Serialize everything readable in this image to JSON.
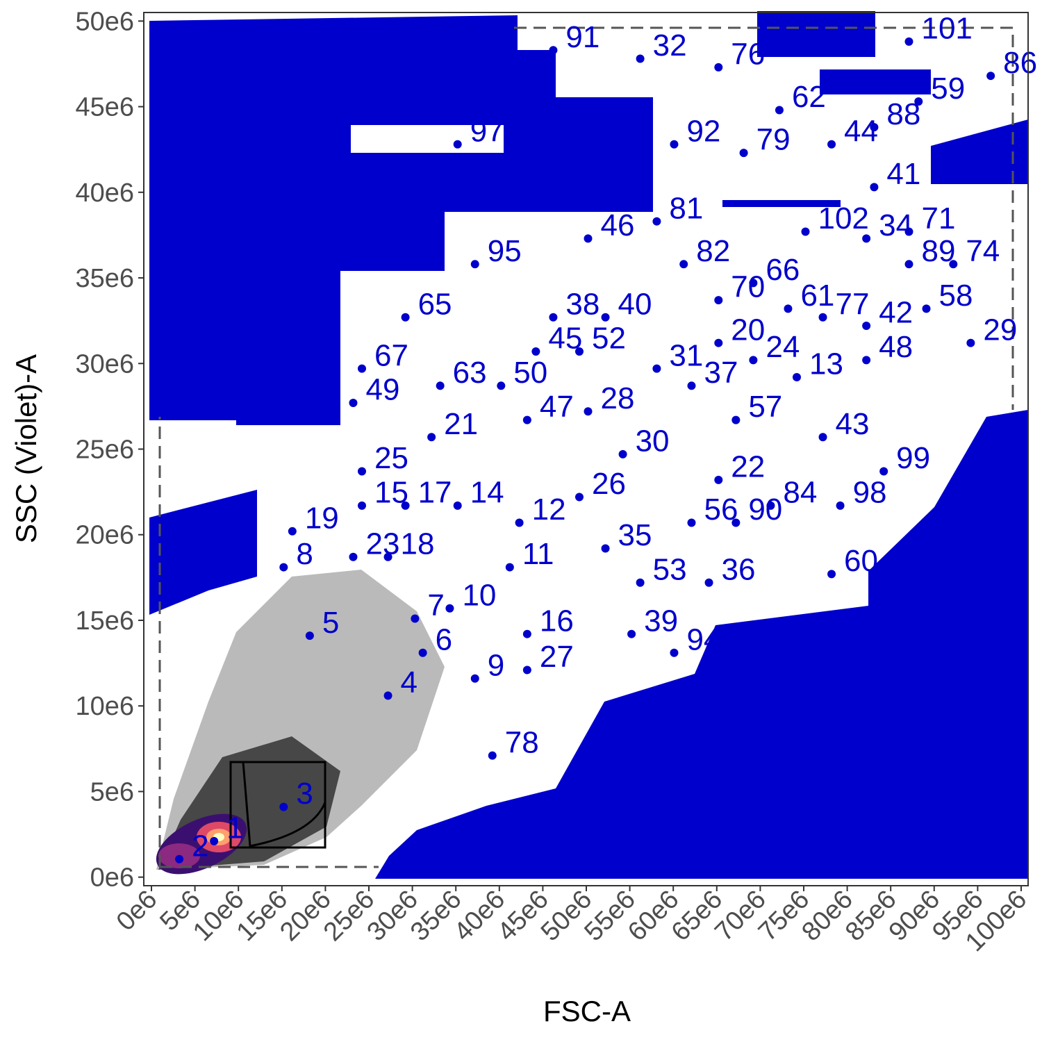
{
  "chart_data": {
    "type": "scatter",
    "x_label": "FSC-A",
    "y_label": "SSC (Violet)-A",
    "xlim": [
      -880000.0,
      100800000.0
    ],
    "ylim": [
      -500000.0,
      50500000.0
    ],
    "xticks": [
      {
        "value": 0,
        "label": "0e6"
      },
      {
        "value": 5000000.0,
        "label": "5e6"
      },
      {
        "value": 10000000.0,
        "label": "10e6"
      },
      {
        "value": 15000000.0,
        "label": "15e6"
      },
      {
        "value": 20000000.0,
        "label": "20e6"
      },
      {
        "value": 25000000.0,
        "label": "25e6"
      },
      {
        "value": 30000000.0,
        "label": "30e6"
      },
      {
        "value": 35000000.0,
        "label": "35e6"
      },
      {
        "value": 40000000.0,
        "label": "40e6"
      },
      {
        "value": 45000000.0,
        "label": "45e6"
      },
      {
        "value": 50000000.0,
        "label": "50e6"
      },
      {
        "value": 55000000.0,
        "label": "55e6"
      },
      {
        "value": 60000000.0,
        "label": "60e6"
      },
      {
        "value": 65000000.0,
        "label": "65e6"
      },
      {
        "value": 70000000.0,
        "label": "70e6"
      },
      {
        "value": 75000000.0,
        "label": "75e6"
      },
      {
        "value": 80000000.0,
        "label": "80e6"
      },
      {
        "value": 85000000.0,
        "label": "85e6"
      },
      {
        "value": 90000000.0,
        "label": "90e6"
      },
      {
        "value": 95000000.0,
        "label": "95e6"
      },
      {
        "value": 100000000.0,
        "label": "100e6"
      }
    ],
    "yticks": [
      {
        "value": 0,
        "label": "0e6"
      },
      {
        "value": 5000000.0,
        "label": "5e6"
      },
      {
        "value": 10000000.0,
        "label": "10e6"
      },
      {
        "value": 15000000.0,
        "label": "15e6"
      },
      {
        "value": 20000000.0,
        "label": "20e6"
      },
      {
        "value": 25000000.0,
        "label": "25e6"
      },
      {
        "value": 30000000.0,
        "label": "30e6"
      },
      {
        "value": 35000000.0,
        "label": "35e6"
      },
      {
        "value": 40000000.0,
        "label": "40e6"
      },
      {
        "value": 45000000.0,
        "label": "45e6"
      },
      {
        "value": 50000000.0,
        "label": "50e6"
      }
    ],
    "series": [
      {
        "color": "#0000cc",
        "labels": [
          "1",
          "2",
          "3",
          "4",
          "5",
          "6",
          "7",
          "8",
          "9",
          "10",
          "11",
          "12",
          "13",
          "14",
          "15",
          "16",
          "17",
          "18",
          "19",
          "20",
          "21",
          "22",
          "23",
          "24",
          "25",
          "26",
          "27",
          "28",
          "29",
          "30",
          "31",
          "32",
          "34",
          "35",
          "36",
          "37",
          "38",
          "39",
          "40",
          "41",
          "42",
          "43",
          "44",
          "45",
          "46",
          "47",
          "48",
          "49",
          "50",
          "52",
          "53",
          "56",
          "57",
          "58",
          "59",
          "60",
          "61",
          "62",
          "63",
          "65",
          "66",
          "67",
          "70",
          "71",
          "74",
          "76",
          "77",
          "78",
          "79",
          "81",
          "82",
          "84",
          "86",
          "88",
          "89",
          "90",
          "91",
          "92",
          "94",
          "95",
          "97",
          "98",
          "99",
          "101",
          "102"
        ],
        "x": [
          7200000.0,
          3200000.0,
          15200000.0,
          27200000.0,
          18200000.0,
          31200000.0,
          30300000.0,
          15200000.0,
          37200000.0,
          34300000.0,
          41200000.0,
          42300000.0,
          74200000.0,
          35200000.0,
          24200000.0,
          43200000.0,
          29200000.0,
          27200000.0,
          16200000.0,
          65200000.0,
          32200000.0,
          65200000.0,
          23200000.0,
          69200000.0,
          24200000.0,
          49200000.0,
          43200000.0,
          50200000.0,
          94200000.0,
          54200000.0,
          58100000.0,
          56200000.0,
          82200000.0,
          52200000.0,
          64100000.0,
          62100000.0,
          46200000.0,
          55200000.0,
          52200000.0,
          83100000.0,
          82200000.0,
          77200000.0,
          78200000.0,
          44200000.0,
          50200000.0,
          43200000.0,
          82200000.0,
          23200000.0,
          40200000.0,
          49200000.0,
          56200000.0,
          62100000.0,
          67200000.0,
          89100000.0,
          88200000.0,
          78200000.0,
          73200000.0,
          72200000.0,
          33200000.0,
          29200000.0,
          69200000.0,
          24200000.0,
          65200000.0,
          87100000.0,
          92200000.0,
          65200000.0,
          77200000.0,
          39200000.0,
          68100000.0,
          58100000.0,
          61200000.0,
          71200000.0,
          96500000.0,
          83100000.0,
          87100000.0,
          67200000.0,
          46200000.0,
          60100000.0,
          60100000.0,
          37200000.0,
          35200000.0,
          79200000.0,
          84200000.0,
          87100000.0,
          75200000.0
        ],
        "y": [
          2100000.0,
          1050000.0,
          4100000.0,
          10600000.0,
          14100000.0,
          13100000.0,
          15100000.0,
          18100000.0,
          11600000.0,
          15700000.0,
          18100000.0,
          20700000.0,
          29200000.0,
          21700000.0,
          21700000.0,
          14200000.0,
          21700000.0,
          18700000.0,
          20200000.0,
          31200000.0,
          25700000.0,
          23200000.0,
          18700000.0,
          30200000.0,
          23700000.0,
          22200000.0,
          12100000.0,
          27200000.0,
          31200000.0,
          24700000.0,
          29700000.0,
          47800000.0,
          37300000.0,
          19200000.0,
          17200000.0,
          28700000.0,
          32700000.0,
          14200000.0,
          32700000.0,
          40300000.0,
          32200000.0,
          25700000.0,
          42800000.0,
          30700000.0,
          37300000.0,
          26700000.0,
          30200000.0,
          27700000.0,
          28700000.0,
          30700000.0,
          17200000.0,
          20700000.0,
          26700000.0,
          33200000.0,
          45300000.0,
          17700000.0,
          33200000.0,
          44800000.0,
          28700000.0,
          32700000.0,
          34700000.0,
          29700000.0,
          33700000.0,
          37700000.0,
          35800000.0,
          47300000.0,
          32700000.0,
          7100000.0,
          42300000.0,
          38300000.0,
          35800000.0,
          21700000.0,
          46800000.0,
          43800000.0,
          35800000.0,
          20700000.0,
          48300000.0,
          42800000.0,
          13100000.0,
          35800000.0,
          42800000.0,
          21700000.0,
          23700000.0,
          48800000.0,
          37700000.0
        ]
      }
    ]
  }
}
